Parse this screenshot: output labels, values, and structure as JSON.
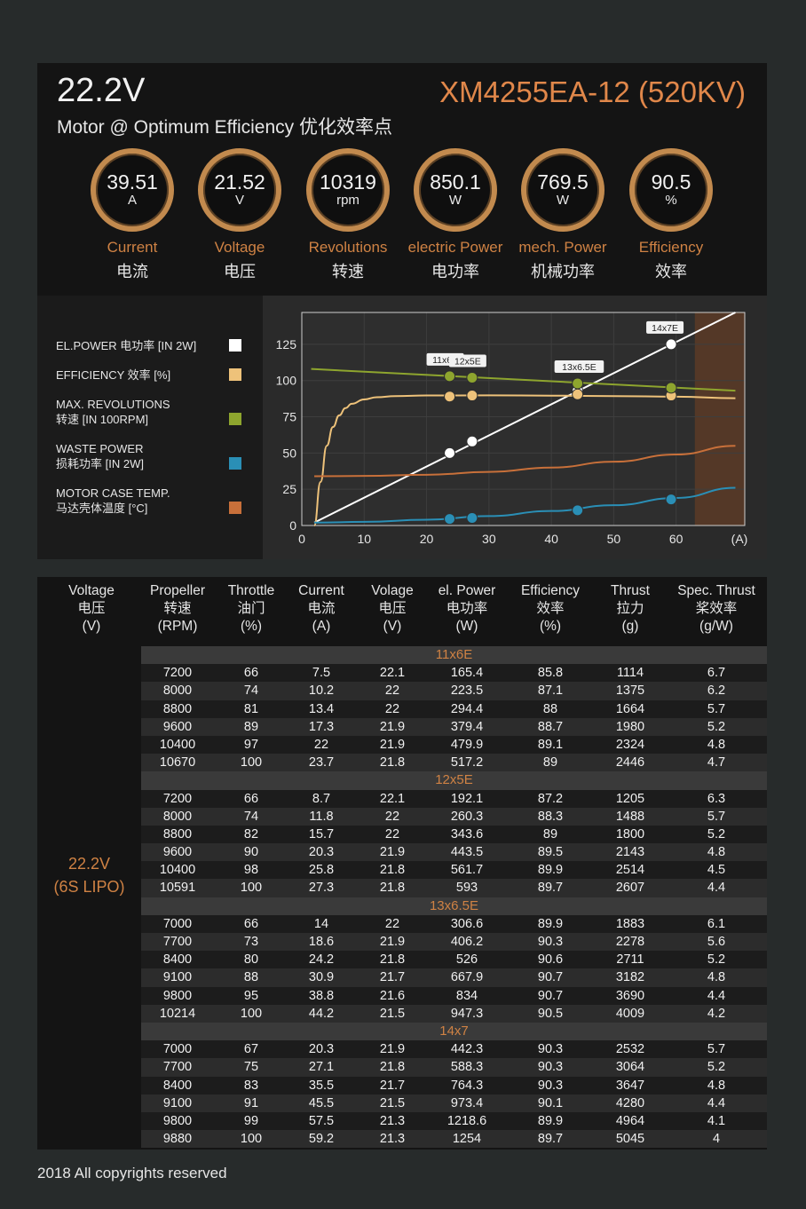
{
  "header": {
    "voltage": "22.2V",
    "subtitle": "Motor @ Optimum Efficiency  优化效率点",
    "model": "XM4255EA-12 (520KV)"
  },
  "gauges": [
    {
      "value": "39.51",
      "unit": "A",
      "label_en": "Current",
      "label_cn": "电流"
    },
    {
      "value": "21.52",
      "unit": "V",
      "label_en": "Voltage",
      "label_cn": "电压"
    },
    {
      "value": "10319",
      "unit": "rpm",
      "label_en": "Revolutions",
      "label_cn": "转速"
    },
    {
      "value": "850.1",
      "unit": "W",
      "label_en": "electric Power",
      "label_cn": "电功率"
    },
    {
      "value": "769.5",
      "unit": "W",
      "label_en": "mech. Power",
      "label_cn": "机械功率"
    },
    {
      "value": "90.5",
      "unit": "%",
      "label_en": "Efficiency",
      "label_cn": "效率"
    }
  ],
  "legend": [
    {
      "line1": "EL.POWER 电功率 [IN 2W]",
      "line2": "",
      "color": "#ffffff"
    },
    {
      "line1": "EFFICIENCY 效率 [%]",
      "line2": "",
      "color": "#eec27a"
    },
    {
      "line1": "MAX. REVOLUTIONS",
      "line2": "转速 [IN 100RPM]",
      "color": "#8ea52e"
    },
    {
      "line1": "WASTE POWER",
      "line2": "损耗功率 [IN 2W]",
      "color": "#2a8fb6"
    },
    {
      "line1": "MOTOR CASE TEMP.",
      "line2": "马达壳体温度 [°C]",
      "color": "#c8703a"
    }
  ],
  "chart_data": {
    "type": "line",
    "xlabel": "(A)",
    "x_ticks": [
      0,
      10,
      20,
      30,
      40,
      50,
      60
    ],
    "y_ticks": [
      0,
      25,
      50,
      75,
      100,
      125
    ],
    "xlim": [
      0,
      71
    ],
    "ylim": [
      0,
      147
    ],
    "shaded_from_x": 63,
    "series": [
      {
        "name": "EL.POWER 电功率 [IN 2W]",
        "color": "#ffffff",
        "x": [
          2,
          69.5
        ],
        "y": [
          2,
          147
        ]
      },
      {
        "name": "EFFICIENCY 效率 [%]",
        "color": "#eec27a",
        "x": [
          2,
          3,
          4,
          5,
          6,
          7,
          8,
          10,
          12,
          15,
          20,
          30,
          40,
          50,
          60,
          69.5
        ],
        "y": [
          0,
          30,
          55,
          68,
          76,
          81,
          84,
          87,
          88.5,
          89.3,
          89.7,
          89.8,
          89.6,
          89.3,
          88.9,
          87.8
        ]
      },
      {
        "name": "MAX. REVOLUTIONS",
        "color": "#8ea52e",
        "x": [
          1.5,
          69.5
        ],
        "y": [
          108,
          93
        ]
      },
      {
        "name": "WASTE POWER",
        "color": "#2a8fb6",
        "x": [
          2,
          10,
          20,
          30,
          40,
          50,
          60,
          69.5
        ],
        "y": [
          2,
          2.5,
          4,
          6.5,
          10,
          14,
          19,
          26
        ]
      },
      {
        "name": "MOTOR CASE TEMP.",
        "color": "#c8703a",
        "x": [
          2,
          10,
          20,
          30,
          40,
          50,
          60,
          69.5
        ],
        "y": [
          34,
          34.2,
          35,
          37,
          40,
          44,
          49,
          55
        ]
      }
    ],
    "markers": [
      {
        "prop": "11x6E",
        "x": 23.7,
        "points": [
          {
            "series": 0,
            "y": 50
          },
          {
            "series": 1,
            "y": 89
          },
          {
            "series": 2,
            "y": 103
          },
          {
            "series": 3,
            "y": 4.5
          }
        ]
      },
      {
        "prop": "12x5E",
        "x": 27.3,
        "points": [
          {
            "series": 0,
            "y": 58
          },
          {
            "series": 1,
            "y": 89.7
          },
          {
            "series": 2,
            "y": 102
          },
          {
            "series": 3,
            "y": 5.2
          }
        ]
      },
      {
        "prop": "13x6.5E",
        "x": 44.2,
        "points": [
          {
            "series": 0,
            "y": 93
          },
          {
            "series": 1,
            "y": 90.5
          },
          {
            "series": 2,
            "y": 98
          },
          {
            "series": 3,
            "y": 10.5
          }
        ]
      },
      {
        "prop": "14x7E",
        "x": 59.2,
        "points": [
          {
            "series": 0,
            "y": 125
          },
          {
            "series": 1,
            "y": 89.7
          },
          {
            "series": 2,
            "y": 95
          },
          {
            "series": 3,
            "y": 18
          }
        ]
      }
    ]
  },
  "table": {
    "headers": [
      {
        "en": "Voltage",
        "cn": "电压",
        "unit": "(V)"
      },
      {
        "en": "Propeller",
        "cn": "转速",
        "unit": "(RPM)"
      },
      {
        "en": "Throttle",
        "cn": "油门",
        "unit": "(%)"
      },
      {
        "en": "Current",
        "cn": "电流",
        "unit": "(A)"
      },
      {
        "en": "Volage",
        "cn": "电压",
        "unit": "(V)"
      },
      {
        "en": "el. Power",
        "cn": "电功率",
        "unit": "(W)"
      },
      {
        "en": "Efficiency",
        "cn": "效率",
        "unit": "(%)"
      },
      {
        "en": "Thrust",
        "cn": "拉力",
        "unit": "(g)"
      },
      {
        "en": "Spec. Thrust",
        "cn": "桨效率",
        "unit": "(g/W)"
      }
    ],
    "voltage_line1": "22.2V",
    "voltage_line2": "(6S LIPO)",
    "groups": [
      {
        "prop": "11x6E",
        "rows": [
          [
            "7200",
            "66",
            "7.5",
            "22.1",
            "165.4",
            "85.8",
            "1114",
            "6.7"
          ],
          [
            "8000",
            "74",
            "10.2",
            "22",
            "223.5",
            "87.1",
            "1375",
            "6.2"
          ],
          [
            "8800",
            "81",
            "13.4",
            "22",
            "294.4",
            "88",
            "1664",
            "5.7"
          ],
          [
            "9600",
            "89",
            "17.3",
            "21.9",
            "379.4",
            "88.7",
            "1980",
            "5.2"
          ],
          [
            "10400",
            "97",
            "22",
            "21.9",
            "479.9",
            "89.1",
            "2324",
            "4.8"
          ],
          [
            "10670",
            "100",
            "23.7",
            "21.8",
            "517.2",
            "89",
            "2446",
            "4.7"
          ]
        ]
      },
      {
        "prop": "12x5E",
        "rows": [
          [
            "7200",
            "66",
            "8.7",
            "22.1",
            "192.1",
            "87.2",
            "1205",
            "6.3"
          ],
          [
            "8000",
            "74",
            "11.8",
            "22",
            "260.3",
            "88.3",
            "1488",
            "5.7"
          ],
          [
            "8800",
            "82",
            "15.7",
            "22",
            "343.6",
            "89",
            "1800",
            "5.2"
          ],
          [
            "9600",
            "90",
            "20.3",
            "21.9",
            "443.5",
            "89.5",
            "2143",
            "4.8"
          ],
          [
            "10400",
            "98",
            "25.8",
            "21.8",
            "561.7",
            "89.9",
            "2514",
            "4.5"
          ],
          [
            "10591",
            "100",
            "27.3",
            "21.8",
            "593",
            "89.7",
            "2607",
            "4.4"
          ]
        ]
      },
      {
        "prop": "13x6.5E",
        "rows": [
          [
            "7000",
            "66",
            "14",
            "22",
            "306.6",
            "89.9",
            "1883",
            "6.1"
          ],
          [
            "7700",
            "73",
            "18.6",
            "21.9",
            "406.2",
            "90.3",
            "2278",
            "5.6"
          ],
          [
            "8400",
            "80",
            "24.2",
            "21.8",
            "526",
            "90.6",
            "2711",
            "5.2"
          ],
          [
            "9100",
            "88",
            "30.9",
            "21.7",
            "667.9",
            "90.7",
            "3182",
            "4.8"
          ],
          [
            "9800",
            "95",
            "38.8",
            "21.6",
            "834",
            "90.7",
            "3690",
            "4.4"
          ],
          [
            "10214",
            "100",
            "44.2",
            "21.5",
            "947.3",
            "90.5",
            "4009",
            "4.2"
          ]
        ]
      },
      {
        "prop": "14x7",
        "rows": [
          [
            "7000",
            "67",
            "20.3",
            "21.9",
            "442.3",
            "90.3",
            "2532",
            "5.7"
          ],
          [
            "7700",
            "75",
            "27.1",
            "21.8",
            "588.3",
            "90.3",
            "3064",
            "5.2"
          ],
          [
            "8400",
            "83",
            "35.5",
            "21.7",
            "764.3",
            "90.3",
            "3647",
            "4.8"
          ],
          [
            "9100",
            "91",
            "45.5",
            "21.5",
            "973.4",
            "90.1",
            "4280",
            "4.4"
          ],
          [
            "9800",
            "99",
            "57.5",
            "21.3",
            "1218.6",
            "89.9",
            "4964",
            "4.1"
          ],
          [
            "9880",
            "100",
            "59.2",
            "21.3",
            "1254",
            "89.7",
            "5045",
            "4"
          ]
        ]
      }
    ]
  },
  "footer": "2018 All copyrights reserved"
}
